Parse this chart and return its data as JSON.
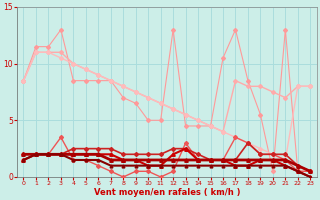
{
  "background_color": "#cceee8",
  "grid_color": "#aadddd",
  "xlabel": "Vent moyen/en rafales ( km/h )",
  "xlabel_color": "#cc0000",
  "tick_color": "#cc0000",
  "ylim": [
    0,
    15
  ],
  "xlim": [
    -0.5,
    23.5
  ],
  "yticks": [
    0,
    5,
    10,
    15
  ],
  "xticks": [
    0,
    1,
    2,
    3,
    4,
    5,
    6,
    7,
    8,
    9,
    10,
    11,
    12,
    13,
    14,
    15,
    16,
    17,
    18,
    19,
    20,
    21,
    22,
    23
  ],
  "series": [
    {
      "x": [
        0,
        1,
        2,
        3,
        4,
        5,
        6,
        7,
        8,
        9,
        10,
        11,
        12,
        13,
        14,
        15,
        16,
        17,
        18,
        19,
        20,
        21,
        22,
        23
      ],
      "y": [
        8.5,
        11.5,
        11.5,
        13.0,
        8.5,
        8.5,
        8.5,
        8.5,
        7.0,
        6.5,
        5.0,
        5.0,
        13.0,
        4.5,
        4.5,
        4.5,
        10.5,
        13.0,
        8.5,
        5.5,
        0.5,
        13.0,
        0.5,
        0.5
      ],
      "color": "#ff9999",
      "lw": 0.8,
      "marker": "D",
      "ms": 2.0
    },
    {
      "x": [
        0,
        1,
        2,
        3,
        4,
        5,
        6,
        7,
        8,
        9,
        10,
        11,
        12,
        13,
        14,
        15,
        16,
        17,
        18,
        19,
        20,
        21,
        22,
        23
      ],
      "y": [
        8.5,
        11.0,
        11.0,
        11.0,
        10.0,
        9.5,
        9.0,
        8.5,
        8.0,
        7.5,
        7.0,
        6.5,
        6.0,
        5.5,
        5.0,
        4.5,
        4.0,
        8.5,
        8.0,
        8.0,
        7.5,
        7.0,
        8.0,
        8.0
      ],
      "color": "#ffaaaa",
      "lw": 1.0,
      "marker": "D",
      "ms": 2.0
    },
    {
      "x": [
        0,
        1,
        2,
        3,
        4,
        5,
        6,
        7,
        8,
        9,
        10,
        11,
        12,
        13,
        14,
        15,
        16,
        17,
        18,
        19,
        20,
        21,
        22,
        23
      ],
      "y": [
        8.5,
        11.0,
        11.0,
        10.5,
        10.0,
        9.5,
        9.0,
        8.5,
        8.0,
        7.5,
        7.0,
        6.5,
        6.0,
        5.5,
        5.0,
        4.5,
        4.0,
        3.5,
        3.0,
        2.5,
        2.0,
        1.5,
        8.0,
        8.0
      ],
      "color": "#ffbbbb",
      "lw": 1.0,
      "marker": "D",
      "ms": 2.0
    },
    {
      "x": [
        0,
        1,
        2,
        3,
        4,
        5,
        6,
        7,
        8,
        9,
        10,
        11,
        12,
        13,
        14,
        15,
        16,
        17,
        18,
        19,
        20,
        21,
        22,
        23
      ],
      "y": [
        1.5,
        2.0,
        2.0,
        3.5,
        1.5,
        1.5,
        1.0,
        0.5,
        0.0,
        0.5,
        0.5,
        0.0,
        0.5,
        3.0,
        1.5,
        1.5,
        1.5,
        3.5,
        3.0,
        2.0,
        2.0,
        1.5,
        0.5,
        0.5
      ],
      "color": "#ee5555",
      "lw": 1.0,
      "marker": "D",
      "ms": 2.0
    },
    {
      "x": [
        0,
        1,
        2,
        3,
        4,
        5,
        6,
        7,
        8,
        9,
        10,
        11,
        12,
        13,
        14,
        15,
        16,
        17,
        18,
        19,
        20,
        21,
        22,
        23
      ],
      "y": [
        2.0,
        2.0,
        2.0,
        2.0,
        2.5,
        2.5,
        2.5,
        2.5,
        2.0,
        2.0,
        2.0,
        2.0,
        2.5,
        2.5,
        2.0,
        1.5,
        1.5,
        1.5,
        3.0,
        2.0,
        2.0,
        2.0,
        1.0,
        0.5
      ],
      "color": "#cc2222",
      "lw": 1.2,
      "marker": "D",
      "ms": 2.0
    },
    {
      "x": [
        0,
        1,
        2,
        3,
        4,
        5,
        6,
        7,
        8,
        9,
        10,
        11,
        12,
        13,
        14,
        15,
        16,
        17,
        18,
        19,
        20,
        21,
        22,
        23
      ],
      "y": [
        1.5,
        2.0,
        2.0,
        2.0,
        2.0,
        2.0,
        2.0,
        2.0,
        1.5,
        1.5,
        1.0,
        1.0,
        2.0,
        2.5,
        1.5,
        1.5,
        1.5,
        1.0,
        1.0,
        1.5,
        1.5,
        1.0,
        0.5,
        0.0
      ],
      "color": "#cc0000",
      "lw": 1.5,
      "marker": "^",
      "ms": 2.5
    },
    {
      "x": [
        0,
        1,
        2,
        3,
        4,
        5,
        6,
        7,
        8,
        9,
        10,
        11,
        12,
        13,
        14,
        15,
        16,
        17,
        18,
        19,
        20,
        21,
        22,
        23
      ],
      "y": [
        2.0,
        2.0,
        2.0,
        2.0,
        2.0,
        2.0,
        2.0,
        1.5,
        1.5,
        1.5,
        1.5,
        1.5,
        1.5,
        1.5,
        1.5,
        1.5,
        1.5,
        1.5,
        1.5,
        1.5,
        1.5,
        1.5,
        1.0,
        0.5
      ],
      "color": "#aa0000",
      "lw": 2.0,
      "marker": "^",
      "ms": 2.5
    },
    {
      "x": [
        0,
        1,
        2,
        3,
        4,
        5,
        6,
        7,
        8,
        9,
        10,
        11,
        12,
        13,
        14,
        15,
        16,
        17,
        18,
        19,
        20,
        21,
        22,
        23
      ],
      "y": [
        1.5,
        2.0,
        2.0,
        2.0,
        1.5,
        1.5,
        1.5,
        1.0,
        1.0,
        1.0,
        1.0,
        1.0,
        1.0,
        1.0,
        1.0,
        1.0,
        1.0,
        1.0,
        1.0,
        1.0,
        1.0,
        1.0,
        0.5,
        0.0
      ],
      "color": "#880000",
      "lw": 1.5,
      "marker": "^",
      "ms": 2.0
    }
  ]
}
